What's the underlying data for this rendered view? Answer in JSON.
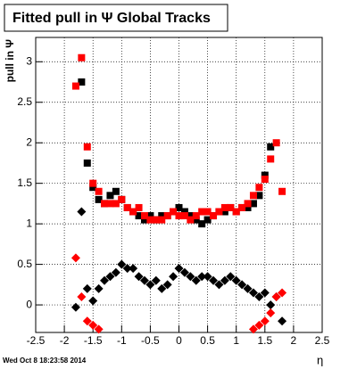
{
  "chart_data": {
    "type": "scatter",
    "title": "Fitted pull in Ψ   Global Tracks",
    "ylabel": "pull in Ψ",
    "xlabel": "η",
    "footer": "Wed Oct  8 18:23:58 2014",
    "x": [
      -1.8,
      -1.7,
      -1.6,
      -1.5,
      -1.4,
      -1.3,
      -1.2,
      -1.1,
      -1.0,
      -0.9,
      -0.8,
      -0.7,
      -0.6,
      -0.5,
      -0.4,
      -0.3,
      -0.2,
      -0.1,
      0.0,
      0.1,
      0.2,
      0.3,
      0.4,
      0.5,
      0.6,
      0.7,
      0.8,
      0.9,
      1.0,
      1.1,
      1.2,
      1.3,
      1.4,
      1.5,
      1.6,
      1.7,
      1.8
    ],
    "series": [
      {
        "color": "#000000",
        "marker": "square",
        "values": [
          null,
          2.75,
          1.75,
          1.45,
          1.3,
          1.25,
          1.35,
          1.4,
          1.3,
          1.2,
          1.15,
          1.1,
          1.05,
          1.1,
          1.05,
          1.1,
          1.1,
          1.15,
          1.2,
          1.15,
          1.1,
          1.05,
          1.0,
          1.05,
          1.1,
          1.15,
          1.15,
          1.2,
          1.15,
          1.2,
          1.2,
          1.25,
          1.35,
          1.6,
          1.95,
          null,
          null
        ]
      },
      {
        "color": "#ff0000",
        "marker": "square",
        "values": [
          2.7,
          3.05,
          1.95,
          1.5,
          1.4,
          1.25,
          1.25,
          1.25,
          1.3,
          1.2,
          1.15,
          1.2,
          1.1,
          1.05,
          1.05,
          1.05,
          1.1,
          1.15,
          1.1,
          1.1,
          1.05,
          1.1,
          1.15,
          1.15,
          1.1,
          1.15,
          1.2,
          1.2,
          1.15,
          1.2,
          1.25,
          1.35,
          1.45,
          1.55,
          1.8,
          2.0,
          1.4
        ]
      },
      {
        "color": "#000000",
        "marker": "diamond",
        "values": [
          -0.03,
          1.15,
          0.2,
          0.05,
          0.2,
          0.3,
          0.35,
          0.4,
          0.5,
          0.45,
          0.45,
          0.35,
          0.3,
          0.25,
          0.3,
          0.2,
          0.25,
          0.35,
          0.45,
          0.4,
          0.35,
          0.3,
          0.35,
          0.35,
          0.3,
          0.25,
          0.3,
          0.35,
          0.3,
          0.25,
          0.2,
          0.15,
          0.1,
          0.15,
          0.0,
          0.1,
          -0.2
        ]
      },
      {
        "color": "#ff0000",
        "marker": "diamond",
        "values": [
          0.58,
          0.1,
          -0.2,
          -0.25,
          -0.3,
          null,
          null,
          null,
          null,
          null,
          null,
          null,
          null,
          null,
          null,
          null,
          null,
          null,
          null,
          null,
          null,
          null,
          null,
          null,
          null,
          null,
          null,
          null,
          null,
          null,
          null,
          -0.3,
          -0.25,
          -0.2,
          -0.1,
          0.1,
          0.15
        ]
      }
    ],
    "xlim": [
      -2.5,
      2.5
    ],
    "xticks": [
      -2.5,
      -2,
      -1.5,
      -1,
      -0.5,
      0,
      0.5,
      1,
      1.5,
      2,
      2.5
    ],
    "ylim": [
      -0.34,
      3.3
    ],
    "yticks": [
      0,
      0.5,
      1,
      1.5,
      2,
      2.5,
      3
    ],
    "grid": true
  }
}
